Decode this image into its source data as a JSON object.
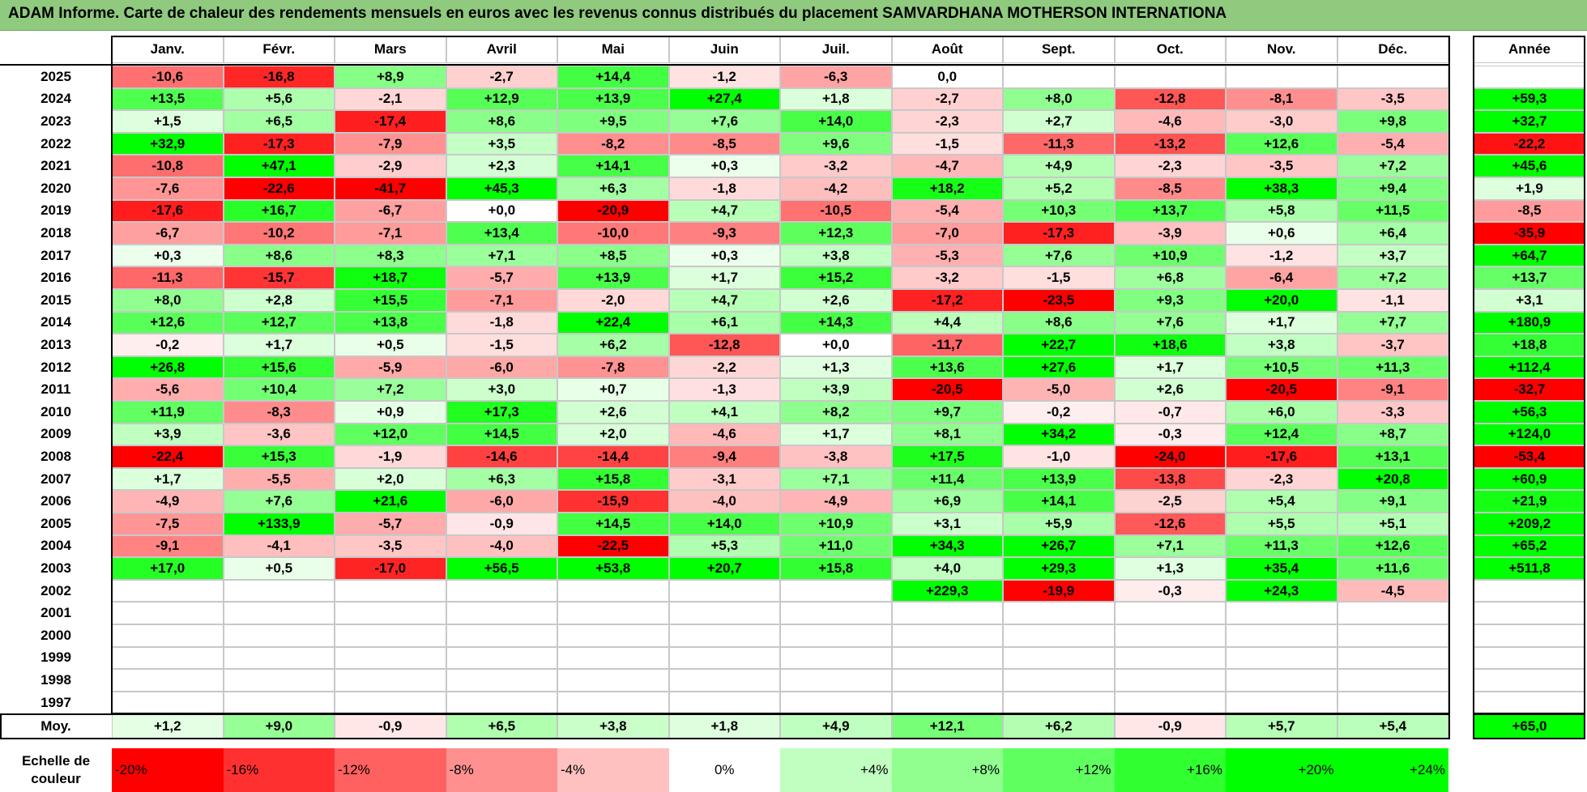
{
  "title": "ADAM Informe. Carte de chaleur des rendements mensuels en euros avec les revenus connus distribués du placement SAMVARDHANA MOTHERSON INTERNATIONA",
  "colors": {
    "header_bg": "#8fca7e",
    "neg_max": "#ff0000",
    "pos_max": "#00ff00",
    "neutral": "#ffffff"
  },
  "chart_data": {
    "type": "heatmap",
    "title": "ADAM Informe. Carte de chaleur des rendements mensuels en euros avec les revenus connus distribués du placement SAMVARDHANA MOTHERSON INTERNATIONA",
    "columns": [
      "Janv.",
      "Févr.",
      "Mars",
      "Avril",
      "Mai",
      "Juin",
      "Juil.",
      "Août",
      "Sept.",
      "Oct.",
      "Nov.",
      "Déc."
    ],
    "year_header": "Année",
    "rows": [
      {
        "year": "2025",
        "values": [
          "-10,6",
          "-16,8",
          "+8,9",
          "-2,7",
          "+14,4",
          "-1,2",
          "-6,3",
          "0,0",
          "",
          "",
          "",
          ""
        ],
        "annual": ""
      },
      {
        "year": "2024",
        "values": [
          "+13,5",
          "+5,6",
          "-2,1",
          "+12,9",
          "+13,9",
          "+27,4",
          "+1,8",
          "-2,7",
          "+8,0",
          "-12,8",
          "-8,1",
          "-3,5"
        ],
        "annual": "+59,3"
      },
      {
        "year": "2023",
        "values": [
          "+1,5",
          "+6,5",
          "-17,4",
          "+8,6",
          "+9,5",
          "+7,6",
          "+14,0",
          "-2,3",
          "+2,7",
          "-4,6",
          "-3,0",
          "+9,8"
        ],
        "annual": "+32,7"
      },
      {
        "year": "2022",
        "values": [
          "+32,9",
          "-17,3",
          "-7,9",
          "+3,5",
          "-8,2",
          "-8,5",
          "+9,6",
          "-1,5",
          "-11,3",
          "-13,2",
          "+12,6",
          "-5,4"
        ],
        "annual": "-22,2"
      },
      {
        "year": "2021",
        "values": [
          "-10,8",
          "+47,1",
          "-2,9",
          "+2,3",
          "+14,1",
          "+0,3",
          "-3,2",
          "-4,7",
          "+4,9",
          "-2,3",
          "-3,5",
          "+7,2"
        ],
        "annual": "+45,6"
      },
      {
        "year": "2020",
        "values": [
          "-7,6",
          "-22,6",
          "-41,7",
          "+45,3",
          "+6,3",
          "-1,8",
          "-4,2",
          "+18,2",
          "+5,2",
          "-8,5",
          "+38,3",
          "+9,4"
        ],
        "annual": "+1,9"
      },
      {
        "year": "2019",
        "values": [
          "-17,6",
          "+16,7",
          "-6,7",
          "+0,0",
          "-20,9",
          "+4,7",
          "-10,5",
          "-5,4",
          "+10,3",
          "+13,7",
          "+5,8",
          "+11,5"
        ],
        "annual": "-8,5"
      },
      {
        "year": "2018",
        "values": [
          "-6,7",
          "-10,2",
          "-7,1",
          "+13,4",
          "-10,0",
          "-9,3",
          "+12,3",
          "-7,0",
          "-17,3",
          "-3,9",
          "+0,6",
          "+6,4"
        ],
        "annual": "-35,9"
      },
      {
        "year": "2017",
        "values": [
          "+0,3",
          "+8,6",
          "+8,3",
          "+7,1",
          "+8,5",
          "+0,3",
          "+3,8",
          "-5,3",
          "+7,6",
          "+10,9",
          "-1,2",
          "+3,7"
        ],
        "annual": "+64,7"
      },
      {
        "year": "2016",
        "values": [
          "-11,3",
          "-15,7",
          "+18,7",
          "-5,7",
          "+13,9",
          "+1,7",
          "+15,2",
          "-3,2",
          "-1,5",
          "+6,8",
          "-6,4",
          "+7,2"
        ],
        "annual": "+13,7"
      },
      {
        "year": "2015",
        "values": [
          "+8,0",
          "+2,8",
          "+15,5",
          "-7,1",
          "-2,0",
          "+4,7",
          "+2,6",
          "-17,2",
          "-23,5",
          "+9,3",
          "+20,0",
          "-1,1"
        ],
        "annual": "+3,1"
      },
      {
        "year": "2014",
        "values": [
          "+12,6",
          "+12,7",
          "+13,8",
          "-1,8",
          "+22,4",
          "+6,1",
          "+14,3",
          "+4,4",
          "+8,6",
          "+7,6",
          "+1,7",
          "+7,7"
        ],
        "annual": "+180,9"
      },
      {
        "year": "2013",
        "values": [
          "-0,2",
          "+1,7",
          "+0,5",
          "-1,5",
          "+6,2",
          "-12,8",
          "+0,0",
          "-11,7",
          "+22,7",
          "+18,6",
          "+3,8",
          "-3,7"
        ],
        "annual": "+18,8"
      },
      {
        "year": "2012",
        "values": [
          "+26,8",
          "+15,6",
          "-5,9",
          "-6,0",
          "-7,8",
          "-2,2",
          "+1,3",
          "+13,6",
          "+27,6",
          "+1,7",
          "+10,5",
          "+11,3"
        ],
        "annual": "+112,4"
      },
      {
        "year": "2011",
        "values": [
          "-5,6",
          "+10,4",
          "+7,2",
          "+3,0",
          "+0,7",
          "-1,3",
          "+3,9",
          "-20,5",
          "-5,0",
          "+2,6",
          "-20,5",
          "-9,1"
        ],
        "annual": "-32,7"
      },
      {
        "year": "2010",
        "values": [
          "+11,9",
          "-8,3",
          "+0,9",
          "+17,3",
          "+2,6",
          "+4,1",
          "+8,2",
          "+9,7",
          "-0,2",
          "-0,7",
          "+6,0",
          "-3,3"
        ],
        "annual": "+56,3"
      },
      {
        "year": "2009",
        "values": [
          "+3,9",
          "-3,6",
          "+12,0",
          "+14,5",
          "+2,0",
          "-4,6",
          "+1,7",
          "+8,1",
          "+34,2",
          "-0,3",
          "+12,4",
          "+8,7"
        ],
        "annual": "+124,0"
      },
      {
        "year": "2008",
        "values": [
          "-22,4",
          "+15,3",
          "-1,9",
          "-14,6",
          "-14,4",
          "-9,4",
          "-3,8",
          "+17,5",
          "-1,0",
          "-24,0",
          "-17,6",
          "+13,1"
        ],
        "annual": "-53,4"
      },
      {
        "year": "2007",
        "values": [
          "+1,7",
          "-5,5",
          "+2,0",
          "+6,3",
          "+15,8",
          "-3,1",
          "+7,1",
          "+11,4",
          "+13,9",
          "-13,8",
          "-2,3",
          "+20,8"
        ],
        "annual": "+60,9"
      },
      {
        "year": "2006",
        "values": [
          "-4,9",
          "+7,6",
          "+21,6",
          "-6,0",
          "-15,9",
          "-4,0",
          "-4,9",
          "+6,9",
          "+14,1",
          "-2,5",
          "+5,4",
          "+9,1"
        ],
        "annual": "+21,9"
      },
      {
        "year": "2005",
        "values": [
          "-7,5",
          "+133,9",
          "-5,7",
          "-0,9",
          "+14,5",
          "+14,0",
          "+10,9",
          "+3,1",
          "+5,9",
          "-12,6",
          "+5,5",
          "+5,1"
        ],
        "annual": "+209,2"
      },
      {
        "year": "2004",
        "values": [
          "-9,1",
          "-4,1",
          "-3,5",
          "-4,0",
          "-22,5",
          "+5,3",
          "+11,0",
          "+34,3",
          "+26,7",
          "+7,1",
          "+11,3",
          "+12,6"
        ],
        "annual": "+65,2"
      },
      {
        "year": "2003",
        "values": [
          "+17,0",
          "+0,5",
          "-17,0",
          "+56,5",
          "+53,8",
          "+20,7",
          "+15,8",
          "+4,0",
          "+29,3",
          "+1,3",
          "+35,4",
          "+11,6"
        ],
        "annual": "+511,8"
      },
      {
        "year": "2002",
        "values": [
          "",
          "",
          "",
          "",
          "",
          "",
          "",
          "+229,3",
          "-19,9",
          "-0,3",
          "+24,3",
          "-4,5"
        ],
        "annual": ""
      },
      {
        "year": "2001",
        "values": [
          "",
          "",
          "",
          "",
          "",
          "",
          "",
          "",
          "",
          "",
          "",
          ""
        ],
        "annual": ""
      },
      {
        "year": "2000",
        "values": [
          "",
          "",
          "",
          "",
          "",
          "",
          "",
          "",
          "",
          "",
          "",
          ""
        ],
        "annual": ""
      },
      {
        "year": "1999",
        "values": [
          "",
          "",
          "",
          "",
          "",
          "",
          "",
          "",
          "",
          "",
          "",
          ""
        ],
        "annual": ""
      },
      {
        "year": "1998",
        "values": [
          "",
          "",
          "",
          "",
          "",
          "",
          "",
          "",
          "",
          "",
          "",
          ""
        ],
        "annual": ""
      },
      {
        "year": "1997",
        "values": [
          "",
          "",
          "",
          "",
          "",
          "",
          "",
          "",
          "",
          "",
          "",
          ""
        ],
        "annual": ""
      }
    ],
    "average": {
      "label": "Moy.",
      "values": [
        "+1,2",
        "+9,0",
        "-0,9",
        "+6,5",
        "+3,8",
        "+1,8",
        "+4,9",
        "+12,1",
        "+6,2",
        "-0,9",
        "+5,7",
        "+5,4"
      ],
      "annual": "+65,0"
    },
    "scale": {
      "label": "Echelle de couleur",
      "steps": [
        "-20%",
        "-16%",
        "-12%",
        "-8%",
        "-4%",
        "0%",
        "+4%",
        "+8%",
        "+12%",
        "+16%",
        "+20%",
        "+24%"
      ]
    }
  }
}
